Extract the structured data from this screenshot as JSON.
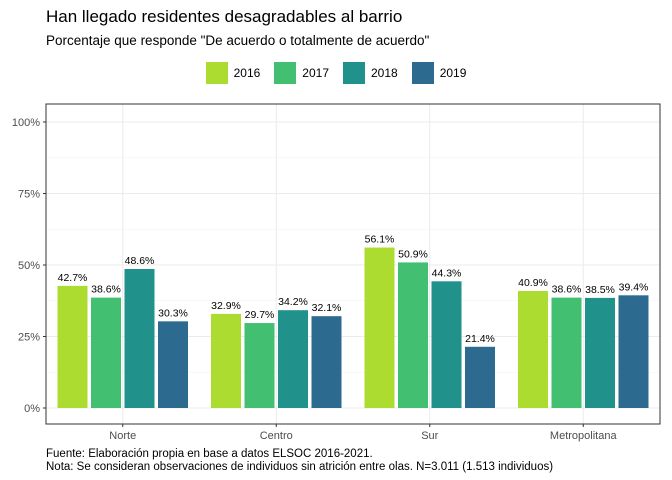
{
  "chart_data": {
    "type": "bar",
    "title": "Han llegado residentes desagradables al barrio",
    "subtitle": "Porcentaje que responde \"De acuerdo o totalmente de acuerdo\"",
    "categories": [
      "Norte",
      "Centro",
      "Sur",
      "Metropolitana"
    ],
    "series": [
      {
        "name": "2016",
        "color": "#addc30",
        "values": [
          42.7,
          32.9,
          56.1,
          40.9
        ],
        "labels": [
          "42.7%",
          "32.9%",
          "56.1%",
          "40.9%"
        ]
      },
      {
        "name": "2017",
        "color": "#43bf71",
        "values": [
          38.6,
          29.7,
          50.9,
          38.6
        ],
        "labels": [
          "38.6%",
          "29.7%",
          "50.9%",
          "38.6%"
        ]
      },
      {
        "name": "2018",
        "color": "#21918c",
        "values": [
          48.6,
          34.2,
          44.3,
          38.5
        ],
        "labels": [
          "48.6%",
          "34.2%",
          "44.3%",
          "38.5%"
        ]
      },
      {
        "name": "2019",
        "color": "#2c6a8f",
        "values": [
          30.3,
          32.1,
          21.4,
          39.4
        ],
        "labels": [
          "30.3%",
          "32.1%",
          "21.4%",
          "39.4%"
        ]
      }
    ],
    "ylim": [
      0,
      100
    ],
    "yticks": [
      0,
      25,
      50,
      75,
      100
    ],
    "ytick_labels": [
      "0%",
      "25%",
      "50%",
      "75%",
      "100%"
    ],
    "grid": true,
    "legend_position": "top",
    "caption": [
      "Fuente: Elaboración propia en base a datos ELSOC 2016-2021.",
      "Nota: Se consideran observaciones de individuos sin atrición entre olas. N=3.011 (1.513 individuos)"
    ]
  }
}
